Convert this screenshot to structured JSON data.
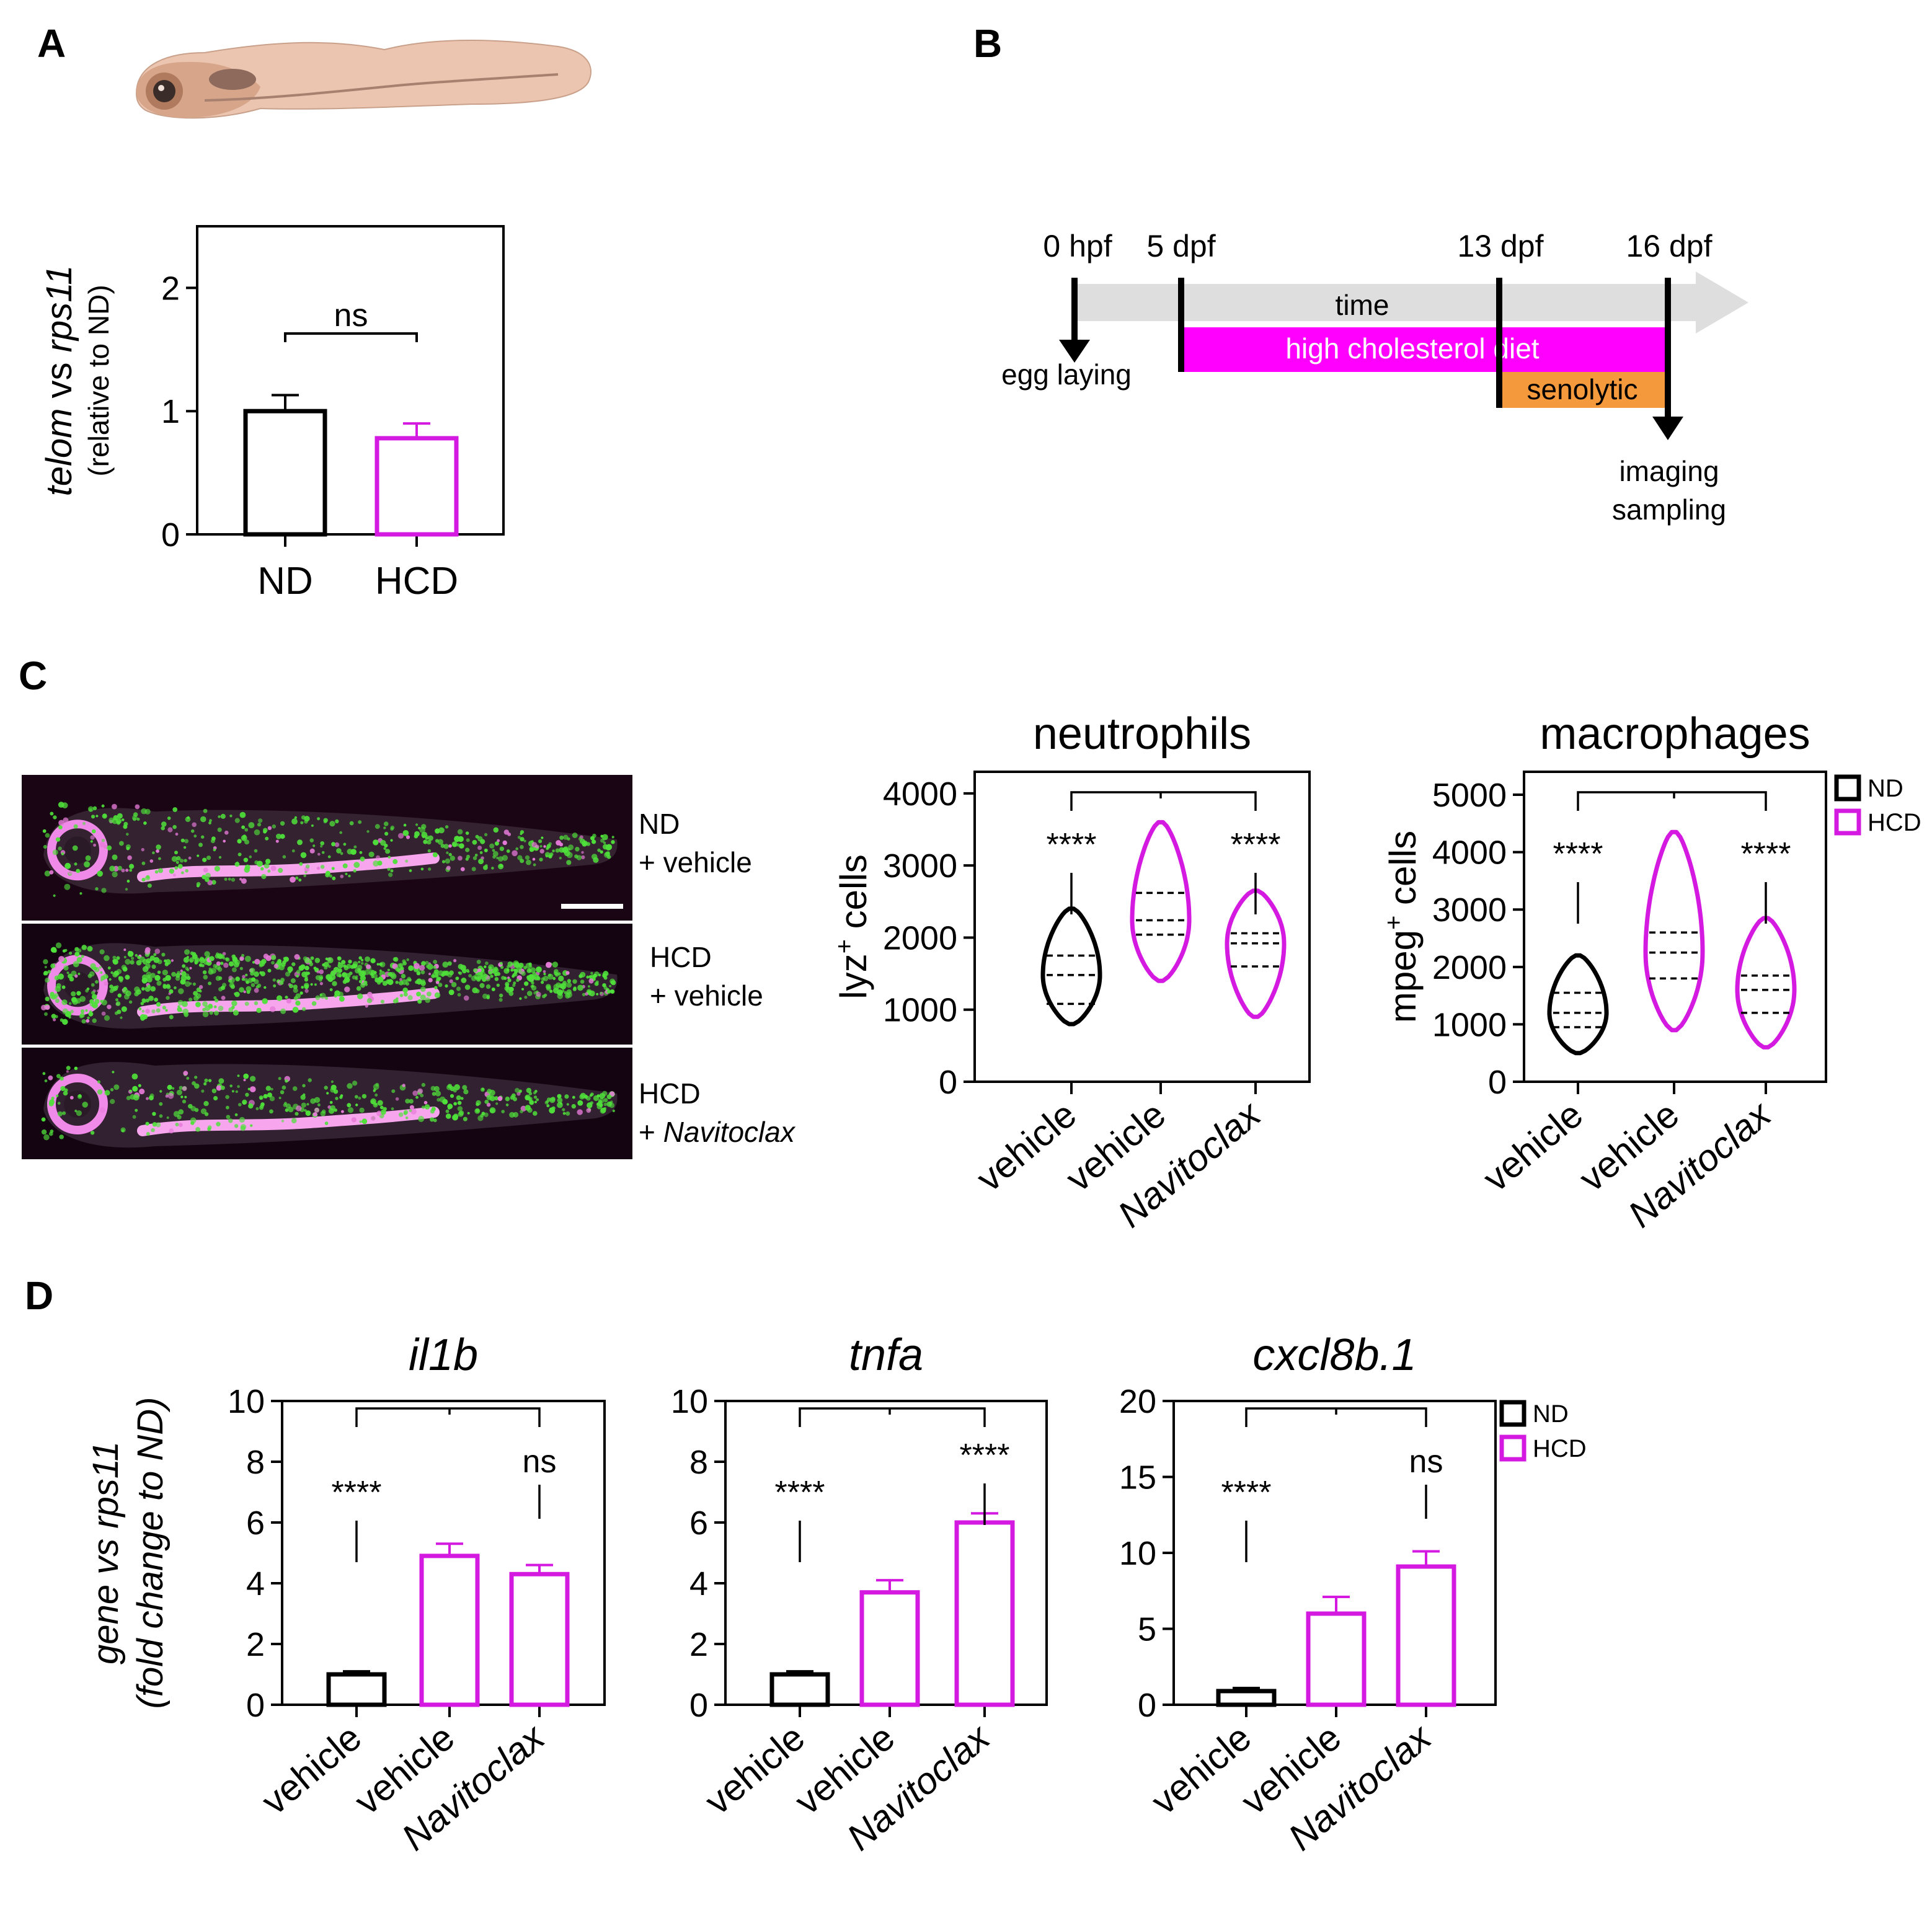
{
  "panels": {
    "A": "A",
    "B": "B",
    "C": "C",
    "D": "D"
  },
  "colors": {
    "nd": "#000000",
    "hcd": "#d41ae0",
    "diet": "#ff00ff",
    "senolytic": "#f59a3c",
    "arrow": "#dedede"
  },
  "timeline": {
    "points": [
      "0 hpf",
      "5 dpf",
      "13 dpf",
      "16 dpf"
    ],
    "arrow_label": "time",
    "diet_label": "high cholesterol diet",
    "senolytic_label": "senolytic",
    "start_label": "egg laying",
    "end_label_1": "imaging",
    "end_label_2": "sampling"
  },
  "images": {
    "labels": [
      {
        "line1": "ND",
        "line2": "+ vehicle"
      },
      {
        "line1": "HCD",
        "line2": "+ vehicle"
      },
      {
        "line1": "HCD",
        "line2": "+ ",
        "drug": "Navitoclax"
      }
    ],
    "fish_icon": "zebrafish-larva-illustration"
  },
  "legend": {
    "nd": "ND",
    "hcd": "HCD"
  },
  "chart_data": [
    {
      "id": "A",
      "type": "bar",
      "categories": [
        "ND",
        "HCD"
      ],
      "values": [
        1.0,
        0.78
      ],
      "errors": [
        0.13,
        0.12
      ],
      "colors": [
        "#000000",
        "#d41ae0"
      ],
      "ylim": [
        0,
        2.5
      ],
      "yticks": [
        0,
        1,
        2
      ],
      "ylabel_italic_1": "telom",
      "ylabel_mid": " vs ",
      "ylabel_italic_2": "rps11",
      "ylabel2": "(relative to ND)",
      "significance": [
        {
          "pair": [
            0,
            1
          ],
          "label": "ns"
        }
      ]
    },
    {
      "id": "C-neutrophils",
      "type": "violin",
      "title": "neutrophils",
      "categories": [
        "vehicle",
        "vehicle",
        "Navitoclax"
      ],
      "groups": [
        "ND",
        "HCD",
        "HCD"
      ],
      "ylim": [
        0,
        4300
      ],
      "yticks": [
        0,
        1000,
        2000,
        3000,
        4000
      ],
      "ylabel": "lyz",
      "ylabel_sup": "+",
      "ylabel_unit": " cells",
      "series": [
        {
          "min": 800,
          "max": 2400,
          "median": 1480,
          "q1": 1080,
          "q3": 1750
        },
        {
          "min": 1400,
          "max": 3600,
          "median": 2240,
          "q1": 2040,
          "q3": 2620
        },
        {
          "min": 900,
          "max": 2650,
          "median": 1920,
          "q1": 1600,
          "q3": 2060
        }
      ],
      "significance": [
        {
          "group": 0,
          "label": "****"
        },
        {
          "group": 2,
          "label": "****"
        }
      ]
    },
    {
      "id": "C-macrophages",
      "type": "violin",
      "title": "macrophages",
      "categories": [
        "vehicle",
        "vehicle",
        "Navitoclax"
      ],
      "groups": [
        "ND",
        "HCD",
        "HCD"
      ],
      "ylim": [
        0,
        5400
      ],
      "yticks": [
        0,
        1000,
        2000,
        3000,
        4000,
        5000
      ],
      "ylabel": "mpeg",
      "ylabel_sup": "+",
      "ylabel_unit": " cells",
      "series": [
        {
          "min": 500,
          "max": 2200,
          "median": 1200,
          "q1": 950,
          "q3": 1550
        },
        {
          "min": 900,
          "max": 4350,
          "median": 2250,
          "q1": 1800,
          "q3": 2600
        },
        {
          "min": 600,
          "max": 2850,
          "median": 1600,
          "q1": 1200,
          "q3": 1850
        }
      ],
      "significance": [
        {
          "group": 0,
          "label": "****"
        },
        {
          "group": 2,
          "label": "****"
        }
      ]
    },
    {
      "id": "D-il1b",
      "type": "bar",
      "title": "il1b",
      "categories": [
        "vehicle",
        "vehicle",
        "Navitoclax"
      ],
      "values": [
        1.0,
        4.9,
        4.3
      ],
      "errors": [
        0.1,
        0.4,
        0.3
      ],
      "colors": [
        "#000000",
        "#d41ae0",
        "#d41ae0"
      ],
      "ylim": [
        0,
        10
      ],
      "yticks": [
        0,
        2,
        4,
        6,
        8,
        10
      ],
      "ylabel_italic_1": "gene",
      "ylabel_mid": " vs ",
      "ylabel_italic_2": "rps11",
      "ylabel2": "(fold change to ND)",
      "significance": [
        {
          "group": 0,
          "label": "****"
        },
        {
          "group": 2,
          "label": "ns"
        }
      ]
    },
    {
      "id": "D-tnfa",
      "type": "bar",
      "title": "tnfa",
      "categories": [
        "vehicle",
        "vehicle",
        "Navitoclax"
      ],
      "values": [
        1.0,
        3.7,
        6.0
      ],
      "errors": [
        0.1,
        0.4,
        0.3
      ],
      "colors": [
        "#000000",
        "#d41ae0",
        "#d41ae0"
      ],
      "ylim": [
        0,
        10
      ],
      "yticks": [
        0,
        2,
        4,
        6,
        8,
        10
      ],
      "significance": [
        {
          "group": 0,
          "label": "****"
        },
        {
          "group": 2,
          "label": "****"
        }
      ]
    },
    {
      "id": "D-cxcl8b1",
      "type": "bar",
      "title": "cxcl8b.1",
      "categories": [
        "vehicle",
        "vehicle",
        "Navitoclax"
      ],
      "values": [
        0.9,
        6.0,
        9.1
      ],
      "errors": [
        0.2,
        1.1,
        1.0
      ],
      "colors": [
        "#000000",
        "#d41ae0",
        "#d41ae0"
      ],
      "ylim": [
        0,
        20
      ],
      "yticks": [
        0,
        5,
        10,
        15,
        20
      ],
      "significance": [
        {
          "group": 0,
          "label": "****"
        },
        {
          "group": 2,
          "label": "ns"
        }
      ]
    }
  ]
}
